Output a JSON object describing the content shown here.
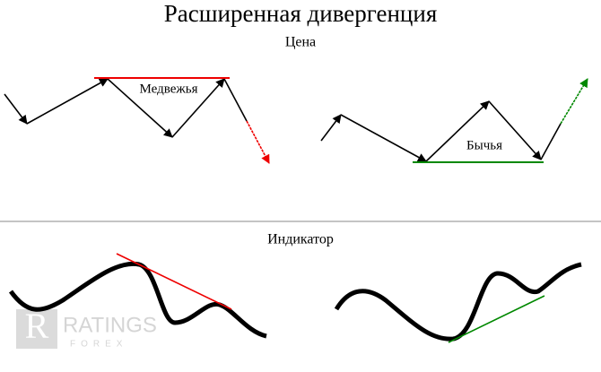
{
  "title": "Расширенная дивергенция",
  "price": {
    "label": "Цена",
    "bearish": "Медвежья",
    "bullish": "Бычья"
  },
  "indicator": {
    "label": "Индикатор"
  },
  "watermark": {
    "name": "RATINGS",
    "sub": "FOREX"
  }
}
